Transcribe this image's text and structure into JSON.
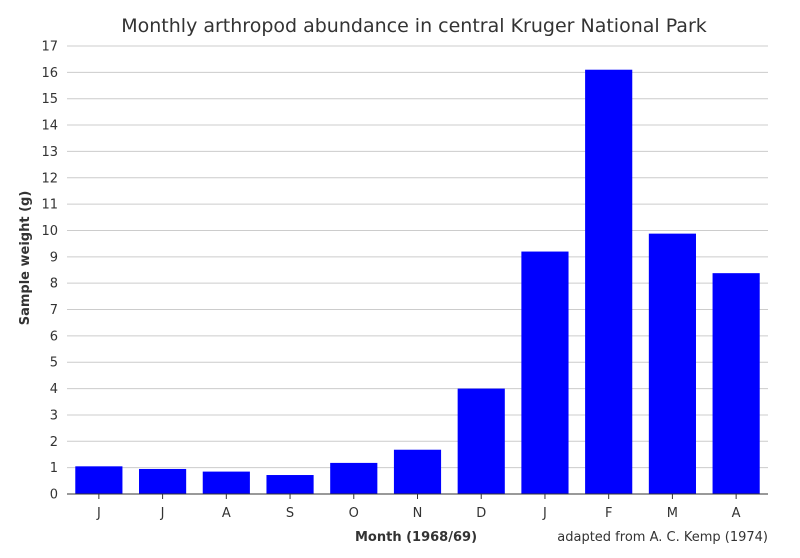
{
  "chart_data": {
    "type": "bar",
    "title": "Monthly arthropod abundance in central Kruger National Park",
    "xlabel": "Month (1968/69)",
    "ylabel": "Sample weight (g)",
    "categories": [
      "J",
      "J",
      "A",
      "S",
      "O",
      "N",
      "D",
      "J",
      "F",
      "M",
      "A"
    ],
    "values": [
      1.05,
      0.95,
      0.85,
      0.72,
      1.18,
      1.68,
      4.0,
      9.2,
      16.1,
      9.88,
      8.38
    ],
    "ylim": [
      0,
      17
    ],
    "yticks": [
      0,
      1,
      2,
      3,
      4,
      5,
      6,
      7,
      8,
      9,
      10,
      11,
      12,
      13,
      14,
      15,
      16,
      17
    ],
    "grid": true,
    "bar_color": "#0000ff",
    "credit": "adapted from A. C. Kemp (1974)"
  }
}
